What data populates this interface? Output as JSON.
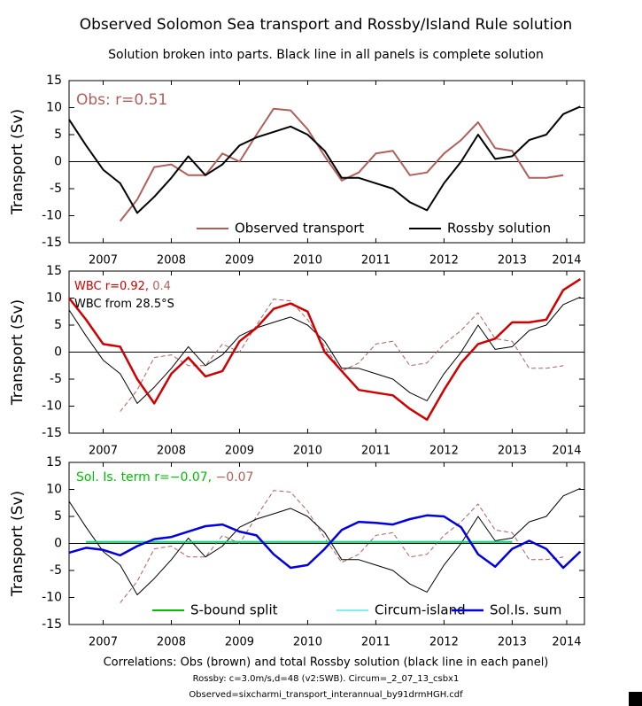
{
  "title": "Observed Solomon Sea transport and Rossby/Island Rule solution",
  "subtitle": "Solution broken into parts. Black line in all panels is complete solution",
  "footer": [
    "Correlations: Obs (brown) and total Rossby solution (black line in each panel)",
    "Rossby: c=3.0m/s,d=48 (v2:SWB). Circum=_2_07_13_csbx1",
    "Observed=sixcharmi_transport_interannual_by91drmHGH.cdf"
  ],
  "chart_data": [
    {
      "type": "line",
      "ylabel": "Transport (Sv)",
      "xlim": [
        2007.0,
        2014.56
      ],
      "xticks": [
        {
          "value": 2007.5,
          "label": "2007"
        },
        {
          "value": 2008.5,
          "label": "2008"
        },
        {
          "value": 2009.5,
          "label": "2009"
        },
        {
          "value": 2010.5,
          "label": "2010"
        },
        {
          "value": 2011.5,
          "label": "2011"
        },
        {
          "value": 2012.5,
          "label": "2012"
        },
        {
          "value": 2013.5,
          "label": "2013"
        },
        {
          "value": 2014.3,
          "label": "2014"
        }
      ],
      "ylim": [
        -15,
        15
      ],
      "yticks": [
        -15,
        -10,
        -5,
        0,
        5,
        10,
        15
      ],
      "annotations": [
        [
          {
            "text": "Obs: r=0.51",
            "color": "#b0605a"
          }
        ]
      ],
      "series": [
        {
          "name": "Observed transport",
          "color": "#b0605a",
          "width": 2,
          "dash": false,
          "x": [
            2007.0,
            2007.25,
            2007.5,
            2007.75,
            2008.0,
            2008.25,
            2008.5,
            2008.75,
            2009.0,
            2009.25,
            2009.5,
            2009.75,
            2010.0,
            2010.25,
            2010.5,
            2010.75,
            2011.0,
            2011.25,
            2011.5,
            2011.75,
            2012.0,
            2012.25,
            2012.5,
            2012.75,
            2013.0,
            2013.25,
            2013.5,
            2013.75,
            2014.0,
            2014.25,
            2014.5
          ],
          "values": [
            null,
            null,
            null,
            -11,
            -7,
            -1,
            -0.5,
            -2.5,
            -2.5,
            1.5,
            0,
            5,
            9.8,
            9.5,
            6,
            1,
            -3.5,
            -2,
            1.5,
            2,
            -2.5,
            -2,
            1.5,
            4,
            7.3,
            2.5,
            2,
            -3,
            -3,
            -2.5,
            null
          ]
        },
        {
          "name": "Rossby solution",
          "color": "#000000",
          "width": 2,
          "dash": false,
          "x": [
            2007.0,
            2007.25,
            2007.5,
            2007.75,
            2008.0,
            2008.25,
            2008.5,
            2008.75,
            2009.0,
            2009.25,
            2009.5,
            2009.75,
            2010.0,
            2010.25,
            2010.5,
            2010.75,
            2011.0,
            2011.25,
            2011.5,
            2011.75,
            2012.0,
            2012.25,
            2012.5,
            2012.75,
            2013.0,
            2013.25,
            2013.5,
            2013.75,
            2014.0,
            2014.25,
            2014.5
          ],
          "values": [
            7.8,
            3,
            -1.5,
            -4,
            -9.5,
            -6.5,
            -3,
            1,
            -2.5,
            -0.5,
            3,
            4.5,
            5.5,
            6.5,
            5,
            2,
            -3,
            -3,
            -4,
            -5,
            -7.5,
            -9,
            -4,
            0,
            5,
            0.5,
            1,
            4,
            5,
            8.8,
            10.2
          ]
        }
      ]
    },
    {
      "type": "line",
      "ylabel": "Transport (Sv)",
      "xlim": [
        2007.0,
        2014.56
      ],
      "xticks": [
        {
          "value": 2007.5,
          "label": "2007"
        },
        {
          "value": 2008.5,
          "label": "2008"
        },
        {
          "value": 2009.5,
          "label": "2009"
        },
        {
          "value": 2010.5,
          "label": "2010"
        },
        {
          "value": 2011.5,
          "label": "2011"
        },
        {
          "value": 2012.5,
          "label": "2012"
        },
        {
          "value": 2013.5,
          "label": "2013"
        },
        {
          "value": 2014.3,
          "label": "2014"
        }
      ],
      "ylim": [
        -15,
        15
      ],
      "yticks": [
        -15,
        -10,
        -5,
        0,
        5,
        10,
        15
      ],
      "annotations": [
        [
          {
            "text": "WBC r=0.92, ",
            "color": "#d00000"
          },
          {
            "text": "0.4",
            "color": "#b0605a"
          }
        ],
        [
          {
            "text": "WBC from 28.5°S",
            "color": "#000000"
          }
        ]
      ],
      "series": [
        {
          "color": "#b0605a",
          "width": 1,
          "dash": true,
          "x": [
            2007.0,
            2007.25,
            2007.5,
            2007.75,
            2008.0,
            2008.25,
            2008.5,
            2008.75,
            2009.0,
            2009.25,
            2009.5,
            2009.75,
            2010.0,
            2010.25,
            2010.5,
            2010.75,
            2011.0,
            2011.25,
            2011.5,
            2011.75,
            2012.0,
            2012.25,
            2012.5,
            2012.75,
            2013.0,
            2013.25,
            2013.5,
            2013.75,
            2014.0,
            2014.25,
            2014.5
          ],
          "values": [
            null,
            null,
            null,
            -11,
            -7,
            -1,
            -0.5,
            -2.5,
            -2.5,
            1.5,
            0,
            5,
            9.8,
            9.5,
            6,
            1,
            -3.5,
            -2,
            1.5,
            2,
            -2.5,
            -2,
            1.5,
            4,
            7.3,
            2.5,
            2,
            -3,
            -3,
            -2.5,
            null
          ]
        },
        {
          "color": "#000000",
          "width": 1,
          "dash": false,
          "x": [
            2007.0,
            2007.25,
            2007.5,
            2007.75,
            2008.0,
            2008.25,
            2008.5,
            2008.75,
            2009.0,
            2009.25,
            2009.5,
            2009.75,
            2010.0,
            2010.25,
            2010.5,
            2010.75,
            2011.0,
            2011.25,
            2011.5,
            2011.75,
            2012.0,
            2012.25,
            2012.5,
            2012.75,
            2013.0,
            2013.25,
            2013.5,
            2013.75,
            2014.0,
            2014.25,
            2014.5
          ],
          "values": [
            7.8,
            3,
            -1.5,
            -4,
            -9.5,
            -6.5,
            -3,
            1,
            -2.5,
            -0.5,
            3,
            4.5,
            5.5,
            6.5,
            5,
            2,
            -3,
            -3,
            -4,
            -5,
            -7.5,
            -9,
            -4,
            0,
            5,
            0.5,
            1,
            4,
            5,
            8.8,
            10.2
          ]
        },
        {
          "color": "#d00000",
          "width": 2.5,
          "dash": false,
          "x": [
            2007.0,
            2007.25,
            2007.5,
            2007.75,
            2008.0,
            2008.25,
            2008.5,
            2008.75,
            2009.0,
            2009.25,
            2009.5,
            2009.75,
            2010.0,
            2010.25,
            2010.5,
            2010.75,
            2011.0,
            2011.25,
            2011.5,
            2011.75,
            2012.0,
            2012.25,
            2012.5,
            2012.75,
            2013.0,
            2013.25,
            2013.5,
            2013.75,
            2014.0,
            2014.25,
            2014.5
          ],
          "values": [
            10,
            6,
            1.5,
            1,
            -5,
            -9.5,
            -4,
            -1,
            -4.5,
            -3.5,
            2,
            4.5,
            8,
            9,
            7.5,
            0,
            -3.5,
            -7,
            -7.5,
            -8,
            -10.5,
            -12.5,
            -7,
            -2,
            1.5,
            2.5,
            5.5,
            5.5,
            6,
            11.5,
            13.5
          ]
        }
      ]
    },
    {
      "type": "line",
      "ylabel": "Transport (Sv)",
      "xlim": [
        2007.0,
        2014.56
      ],
      "xticks": [
        {
          "value": 2007.5,
          "label": "2007"
        },
        {
          "value": 2008.5,
          "label": "2008"
        },
        {
          "value": 2009.5,
          "label": "2009"
        },
        {
          "value": 2010.5,
          "label": "2010"
        },
        {
          "value": 2011.5,
          "label": "2011"
        },
        {
          "value": 2012.5,
          "label": "2012"
        },
        {
          "value": 2013.5,
          "label": "2013"
        },
        {
          "value": 2014.3,
          "label": "2014"
        }
      ],
      "ylim": [
        -15,
        15
      ],
      "yticks": [
        -15,
        -10,
        -5,
        0,
        5,
        10,
        15
      ],
      "annotations": [
        [
          {
            "text": "Sol. Is. term r=−0.07, ",
            "color": "#00c000"
          },
          {
            "text": "−0.07",
            "color": "#b0605a"
          }
        ]
      ],
      "series": [
        {
          "color": "#b0605a",
          "width": 1,
          "dash": true,
          "x": [
            2007.0,
            2007.25,
            2007.5,
            2007.75,
            2008.0,
            2008.25,
            2008.5,
            2008.75,
            2009.0,
            2009.25,
            2009.5,
            2009.75,
            2010.0,
            2010.25,
            2010.5,
            2010.75,
            2011.0,
            2011.25,
            2011.5,
            2011.75,
            2012.0,
            2012.25,
            2012.5,
            2012.75,
            2013.0,
            2013.25,
            2013.5,
            2013.75,
            2014.0,
            2014.25,
            2014.5
          ],
          "values": [
            null,
            null,
            null,
            -11,
            -7,
            -1,
            -0.5,
            -2.5,
            -2.5,
            1.5,
            0,
            5,
            9.8,
            9.5,
            6,
            1,
            -3.5,
            -2,
            1.5,
            2,
            -2.5,
            -2,
            1.5,
            4,
            7.3,
            2.5,
            2,
            -3,
            -3,
            -2.5,
            null
          ]
        },
        {
          "color": "#000000",
          "width": 1,
          "dash": false,
          "x": [
            2007.0,
            2007.25,
            2007.5,
            2007.75,
            2008.0,
            2008.25,
            2008.5,
            2008.75,
            2009.0,
            2009.25,
            2009.5,
            2009.75,
            2010.0,
            2010.25,
            2010.5,
            2010.75,
            2011.0,
            2011.25,
            2011.5,
            2011.75,
            2012.0,
            2012.25,
            2012.5,
            2012.75,
            2013.0,
            2013.25,
            2013.5,
            2013.75,
            2014.0,
            2014.25,
            2014.5
          ],
          "values": [
            7.8,
            3,
            -1.5,
            -4,
            -9.5,
            -6.5,
            -3,
            1,
            -2.5,
            -0.5,
            3,
            4.5,
            5.5,
            6.5,
            5,
            2,
            -3,
            -3,
            -4,
            -5,
            -7.5,
            -9,
            -4,
            0,
            5,
            0.5,
            1,
            4,
            5,
            8.8,
            10.2
          ]
        },
        {
          "name": "S-bound split",
          "color": "#00c000",
          "width": 2,
          "dash": false,
          "x": [
            2007.0,
            2007.25,
            2007.5,
            2007.75,
            2008.0,
            2008.25,
            2008.5,
            2008.75,
            2009.0,
            2009.25,
            2009.5,
            2009.75,
            2010.0,
            2010.25,
            2010.5,
            2010.75,
            2011.0,
            2011.25,
            2011.5,
            2011.75,
            2012.0,
            2012.25,
            2012.5,
            2012.75,
            2013.0,
            2013.25,
            2013.5,
            2013.75,
            2014.0,
            2014.25,
            2014.5
          ],
          "values": [
            null,
            0.3,
            0.3,
            0.3,
            0.3,
            0.3,
            0.3,
            0.3,
            0.3,
            0.3,
            0.3,
            0.3,
            0.3,
            0.3,
            0.3,
            0.3,
            0.3,
            0.3,
            0.3,
            0.3,
            0.3,
            0.3,
            0.3,
            0.3,
            0.3,
            0.3,
            0.3,
            null,
            null,
            null,
            null
          ]
        },
        {
          "name": "Circum-island",
          "color": "#00e0e0",
          "width": 1,
          "dash": false,
          "x": [
            2007.0,
            2007.25,
            2007.5,
            2007.75,
            2008.0,
            2008.25,
            2008.5,
            2008.75,
            2009.0,
            2009.25,
            2009.5,
            2009.75,
            2010.0,
            2010.25,
            2010.5,
            2010.75,
            2011.0,
            2011.25,
            2011.5,
            2011.75,
            2012.0,
            2012.25,
            2012.5,
            2012.75,
            2013.0,
            2013.25,
            2013.5,
            2013.75,
            2014.0,
            2014.25,
            2014.5
          ],
          "values": [
            null,
            0.3,
            0.3,
            0.3,
            0.3,
            0.3,
            0.3,
            0.3,
            0.3,
            0.3,
            0.3,
            0.3,
            0.3,
            0.3,
            0.3,
            0.3,
            0.3,
            0.3,
            0.3,
            0.3,
            0.3,
            0.3,
            0.3,
            0.3,
            0.3,
            0.3,
            0.3,
            null,
            null,
            null,
            null
          ]
        },
        {
          "name": "Sol.Is. sum",
          "color": "#0000e0",
          "width": 2.5,
          "dash": false,
          "x": [
            2007.0,
            2007.25,
            2007.5,
            2007.75,
            2008.0,
            2008.25,
            2008.5,
            2008.75,
            2009.0,
            2009.25,
            2009.5,
            2009.75,
            2010.0,
            2010.25,
            2010.5,
            2010.75,
            2011.0,
            2011.25,
            2011.5,
            2011.75,
            2012.0,
            2012.25,
            2012.5,
            2012.75,
            2013.0,
            2013.25,
            2013.5,
            2013.75,
            2014.0,
            2014.25,
            2014.5
          ],
          "values": [
            -1.7,
            -0.8,
            -1.2,
            -2.2,
            -0.5,
            0.8,
            1.2,
            2.2,
            3.2,
            3.5,
            2.2,
            1.5,
            -2,
            -4.5,
            -4,
            -1,
            2.5,
            4,
            3.8,
            3.5,
            4.5,
            5.2,
            5,
            3,
            -2,
            -4.3,
            -1,
            0.5,
            -1,
            -4.5,
            -1.5
          ]
        }
      ]
    }
  ]
}
